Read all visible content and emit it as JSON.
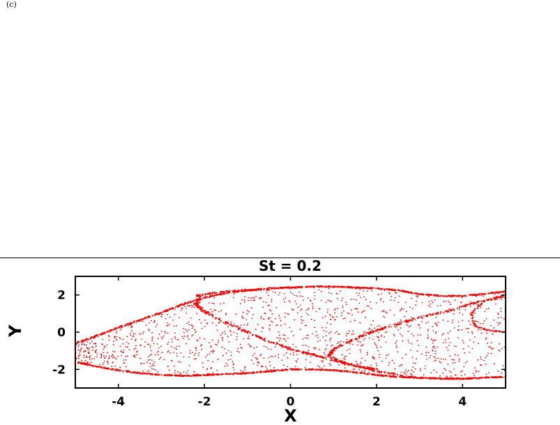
{
  "panel_label": "(c)",
  "chart_data": {
    "type": "scatter",
    "title": "St = 0.2",
    "xlabel": "X",
    "ylabel": "Y",
    "xlim": [
      -5,
      5
    ],
    "ylim": [
      -3,
      3
    ],
    "xticks": [
      -4,
      -2,
      0,
      2,
      4
    ],
    "xtick_labels": [
      "-4",
      "-2",
      "0",
      "2",
      "4"
    ],
    "yticks": [
      -2,
      0,
      2
    ],
    "ytick_labels": [
      "-2",
      "0",
      "2"
    ],
    "grid": false,
    "legend": "none",
    "marker_color": "#ff0000",
    "boundary_upper": [
      [
        -5,
        -0.6
      ],
      [
        -4.5,
        -0.2
      ],
      [
        -4,
        0.25
      ],
      [
        -3.5,
        0.65
      ],
      [
        -3,
        1.05
      ],
      [
        -2.5,
        1.5
      ],
      [
        -2,
        1.85
      ],
      [
        -1.5,
        2.1
      ],
      [
        -1,
        2.25
      ],
      [
        -0.5,
        2.35
      ],
      [
        0,
        2.4
      ],
      [
        0.5,
        2.45
      ],
      [
        1,
        2.45
      ],
      [
        1.5,
        2.4
      ],
      [
        2,
        2.35
      ],
      [
        2.5,
        2.25
      ],
      [
        3,
        2.05
      ],
      [
        3.5,
        1.95
      ],
      [
        4,
        1.95
      ],
      [
        4.5,
        2.05
      ],
      [
        5,
        2.2
      ]
    ],
    "boundary_lower": [
      [
        -5,
        -1.6
      ],
      [
        -4.5,
        -1.85
      ],
      [
        -4,
        -2.05
      ],
      [
        -3.5,
        -2.2
      ],
      [
        -3,
        -2.3
      ],
      [
        -2.5,
        -2.35
      ],
      [
        -2,
        -2.3
      ],
      [
        -1.5,
        -2.25
      ],
      [
        -1,
        -2.2
      ],
      [
        -0.5,
        -2.1
      ],
      [
        0,
        -2.0
      ],
      [
        0.5,
        -2.0
      ],
      [
        1,
        -2.05
      ],
      [
        1.5,
        -2.15
      ],
      [
        2,
        -2.3
      ],
      [
        2.5,
        -2.4
      ],
      [
        3,
        -2.45
      ],
      [
        3.5,
        -2.5
      ],
      [
        4,
        -2.5
      ],
      [
        4.5,
        -2.45
      ],
      [
        5,
        -2.4
      ]
    ],
    "filament_left": [
      [
        -2.1,
        1.95
      ],
      [
        -2.2,
        1.5
      ],
      [
        -2.0,
        1.1
      ],
      [
        -1.5,
        0.5
      ],
      [
        -1.0,
        0.0
      ],
      [
        -0.5,
        -0.5
      ],
      [
        0,
        -0.9
      ],
      [
        0.5,
        -1.2
      ],
      [
        1.0,
        -1.5
      ],
      [
        1.5,
        -1.8
      ],
      [
        2.0,
        -2.1
      ],
      [
        3,
        -2.45
      ],
      [
        4,
        -2.5
      ]
    ],
    "filament_right": [
      [
        5,
        1.9
      ],
      [
        4.3,
        1.6
      ],
      [
        3.7,
        1.15
      ],
      [
        3,
        0.8
      ],
      [
        2.5,
        0.45
      ],
      [
        2,
        0.1
      ],
      [
        1.5,
        -0.35
      ],
      [
        1.0,
        -0.9
      ],
      [
        0.9,
        -1.3
      ],
      [
        1.3,
        -1.7
      ],
      [
        2,
        -2.0
      ]
    ],
    "inner_arc": [
      [
        -2.2,
        1.95
      ],
      [
        -1.8,
        2.1
      ],
      [
        -1.2,
        2.25
      ],
      [
        -0.5,
        2.3
      ]
    ],
    "right_notch": [
      [
        5,
        2.0
      ],
      [
        4.5,
        1.7
      ],
      [
        4.2,
        1.0
      ],
      [
        4.3,
        0.3
      ],
      [
        4.6,
        0.1
      ],
      [
        5,
        0.0
      ]
    ],
    "fill_point_count": 1400,
    "fill_random_seed": 20
  }
}
